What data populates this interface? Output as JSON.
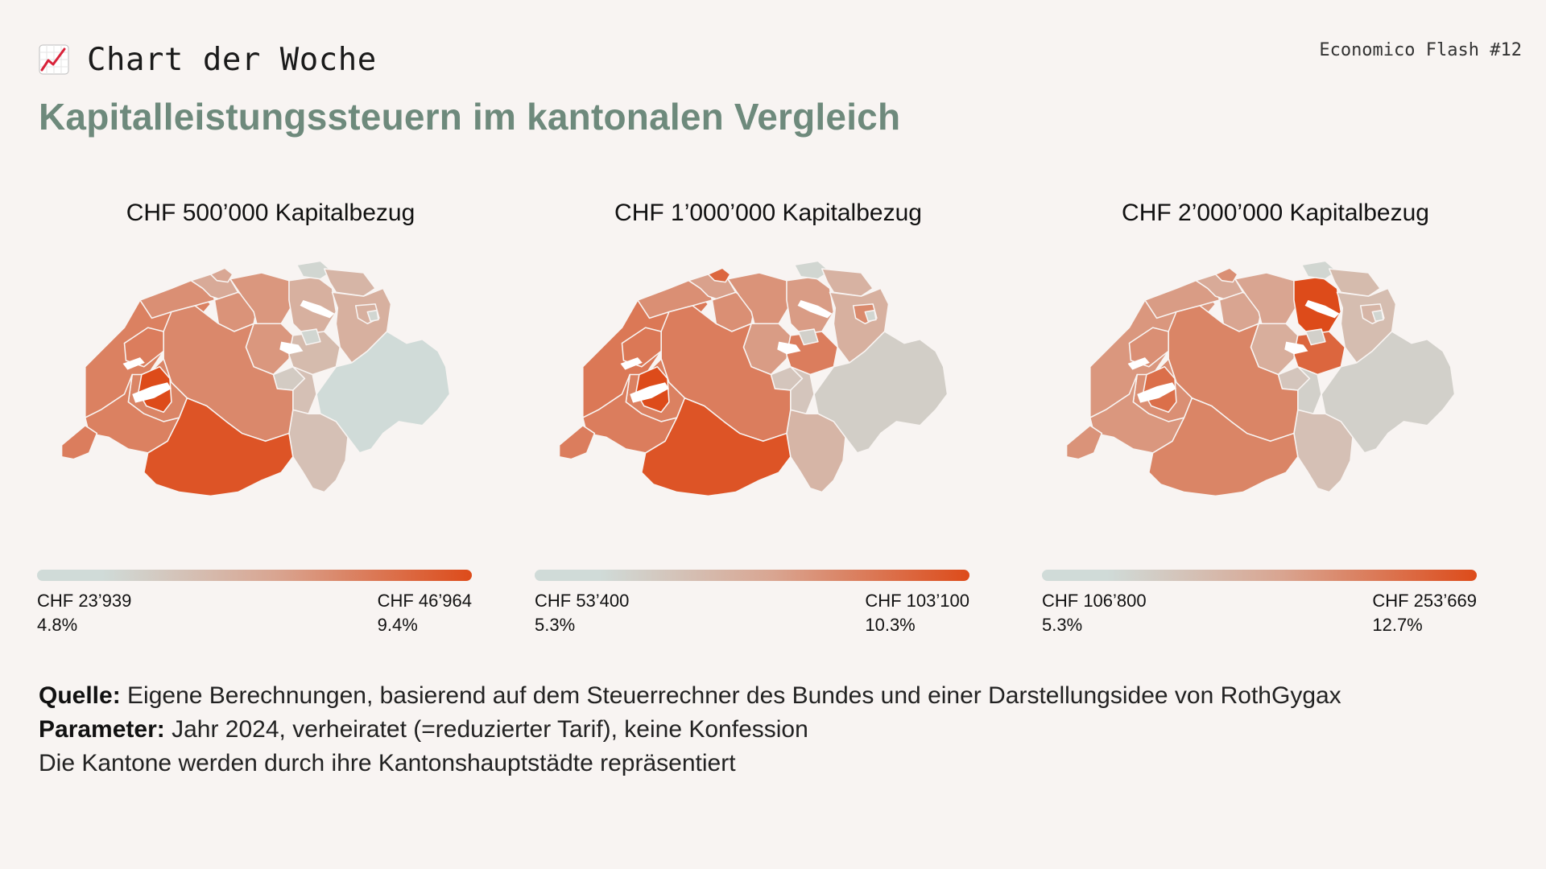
{
  "header": {
    "brand_title": "Chart der Woche",
    "issue": "Economico Flash #12",
    "headline": "Kapitalleistungssteuern im kantonalen Vergleich"
  },
  "colors": {
    "background": "#f8f4f2",
    "headline": "#6e8a7c",
    "scale_low": "#d0dbd8",
    "scale_mid": "#d9a591",
    "scale_high": "#dd4b1a",
    "border": "#f8f4f2"
  },
  "panels": [
    {
      "title": "CHF 500’000 Kapitalbezug",
      "min_amount": "CHF 23’939",
      "min_rate": "4.8%",
      "max_amount": "CHF 46’964",
      "max_rate": "9.4%",
      "regions": {
        "jura": 0.62,
        "westnorth": 0.7,
        "basel": 0.45,
        "baselcity": 0.48,
        "solothurn": 0.6,
        "aargau": 0.58,
        "zurich": 0.4,
        "thurgau": 0.35,
        "schaffhausen": 0.05,
        "stgallen": 0.4,
        "appenzell": 0.4,
        "zugsz": 0.3,
        "zug": 0.05,
        "luzern": 0.58,
        "unterwalden": 0.15,
        "uri": 0.25,
        "glarus": 0.05,
        "graubuenden": 0.0,
        "ticino": 0.25,
        "wallis": 0.95,
        "bern": 0.66,
        "fribourg": 0.68,
        "vaud": 0.7,
        "neuchatel": 0.72,
        "freiburgspot": 1.0,
        "geneva": 0.72,
        "ai": 0.05
      }
    },
    {
      "title": "CHF 1’000’000 Kapitalbezug",
      "min_amount": "CHF 53’400",
      "min_rate": "5.3%",
      "max_amount": "CHF 103’100",
      "max_rate": "10.3%",
      "regions": {
        "jura": 0.62,
        "westnorth": 0.75,
        "basel": 0.52,
        "baselcity": 0.85,
        "solothurn": 0.62,
        "aargau": 0.6,
        "zurich": 0.55,
        "thurgau": 0.38,
        "schaffhausen": 0.05,
        "stgallen": 0.4,
        "appenzell": 0.65,
        "zugsz": 0.72,
        "zug": 0.1,
        "luzern": 0.55,
        "unterwalden": 0.2,
        "uri": 0.2,
        "glarus": 0.1,
        "graubuenden": 0.12,
        "ticino": 0.35,
        "wallis": 0.95,
        "bern": 0.72,
        "fribourg": 0.7,
        "vaud": 0.72,
        "neuchatel": 0.75,
        "freiburgspot": 1.0,
        "geneva": 0.72,
        "ai": 0.05
      }
    },
    {
      "title": "CHF 2’000’000 Kapitalbezug",
      "min_amount": "CHF 106’800",
      "min_rate": "5.3%",
      "max_amount": "CHF 253’669",
      "max_rate": "12.7%",
      "regions": {
        "jura": 0.55,
        "westnorth": 0.58,
        "basel": 0.45,
        "baselcity": 0.62,
        "solothurn": 0.5,
        "aargau": 0.5,
        "zurich": 1.0,
        "thurgau": 0.3,
        "schaffhausen": 0.05,
        "stgallen": 0.28,
        "appenzell": 0.35,
        "zugsz": 0.85,
        "zug": 0.1,
        "luzern": 0.42,
        "unterwalden": 0.2,
        "uri": 0.1,
        "glarus": 0.05,
        "graubuenden": 0.1,
        "ticino": 0.25,
        "wallis": 0.68,
        "bern": 0.68,
        "fribourg": 0.62,
        "vaud": 0.58,
        "neuchatel": 0.62,
        "freiburgspot": 0.8,
        "geneva": 0.6,
        "ai": 0.05
      }
    }
  ],
  "footer": {
    "source_label": "Quelle:",
    "source_text": " Eigene Berechnungen, basierend auf dem Steuerrechner des Bundes und einer Darstellungsidee von RothGygax",
    "param_label": "Parameter:",
    "param_text": " Jahr 2024, verheiratet (=reduzierter Tarif), keine Konfession",
    "note": "Die Kantone werden durch ihre Kantonshauptstädte repräsentiert"
  }
}
